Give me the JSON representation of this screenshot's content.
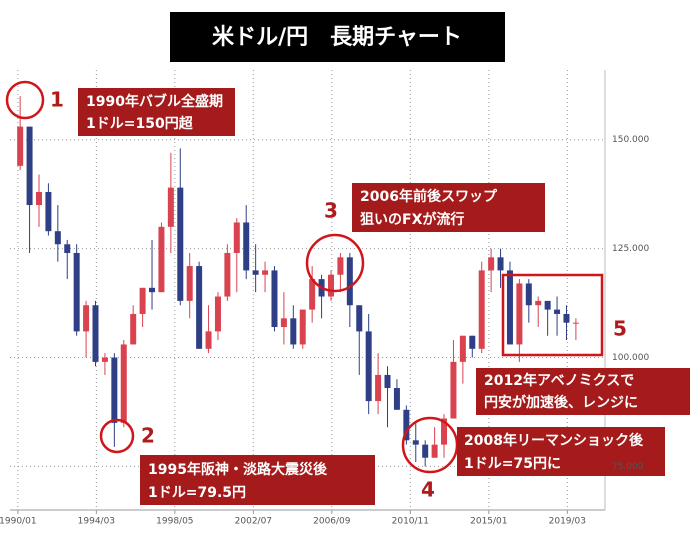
{
  "chart_data": {
    "type": "candlestick",
    "title": "米ドル/円　長期チャート",
    "x": [
      "1990/01",
      "1990/07",
      "1991/01",
      "1991/07",
      "1992/01",
      "1992/07",
      "1993/01",
      "1993/07",
      "1994/01",
      "1994/07",
      "1995/01",
      "1995/07",
      "1996/01",
      "1996/07",
      "1997/01",
      "1997/07",
      "1998/01",
      "1998/07",
      "1999/01",
      "1999/07",
      "2000/01",
      "2000/07",
      "2001/01",
      "2001/07",
      "2002/01",
      "2002/07",
      "2003/01",
      "2003/07",
      "2004/01",
      "2004/07",
      "2005/01",
      "2005/07",
      "2006/01",
      "2006/07",
      "2007/01",
      "2007/07",
      "2008/01",
      "2008/07",
      "2009/01",
      "2009/07",
      "2010/01",
      "2010/07",
      "2011/01",
      "2011/07",
      "2012/01",
      "2012/07",
      "2013/01",
      "2013/07",
      "2014/01",
      "2014/07",
      "2015/01",
      "2015/07",
      "2016/01",
      "2016/07",
      "2017/01",
      "2017/07",
      "2018/01",
      "2018/07",
      "2019/01",
      "2019/07"
    ],
    "open": [
      144,
      153,
      135,
      138,
      129,
      126,
      124,
      106,
      112,
      99,
      100,
      85,
      103,
      110,
      116,
      115,
      130,
      139,
      113,
      121,
      102,
      106,
      114,
      124,
      131,
      120,
      119,
      120,
      107,
      109,
      103,
      111,
      118,
      114,
      119,
      123,
      112,
      106,
      90,
      96,
      93,
      88,
      81,
      80,
      77,
      80,
      86,
      99,
      105,
      102,
      120,
      123,
      120,
      103,
      117,
      112,
      113,
      111,
      110,
      108
    ],
    "high": [
      160,
      153,
      142,
      140,
      135,
      127,
      126,
      113,
      113,
      101,
      101,
      104,
      112,
      116,
      127,
      131,
      147,
      148,
      124,
      122,
      112,
      115,
      126,
      132,
      135,
      126,
      122,
      121,
      115,
      112,
      111,
      121,
      119,
      120,
      124,
      124,
      112,
      110,
      101,
      98,
      95,
      89,
      85,
      81,
      84,
      87,
      104,
      105,
      105,
      122,
      125,
      125,
      122,
      118,
      118,
      114,
      113,
      114,
      112,
      109
    ],
    "low": [
      143,
      124,
      130,
      128,
      122,
      118,
      105,
      100,
      98,
      96,
      79.5,
      84,
      103,
      107,
      111,
      115,
      124,
      112,
      109,
      102,
      101,
      104,
      113,
      115,
      118,
      115,
      115,
      106,
      103,
      102,
      102,
      108,
      109,
      113,
      115,
      107,
      96,
      87,
      87,
      84,
      88,
      80,
      76,
      75,
      77,
      77,
      86,
      94,
      100,
      101,
      115,
      116,
      103,
      99,
      108,
      107,
      105,
      105,
      104,
      104
    ],
    "close": [
      153,
      135,
      138,
      129,
      126,
      124,
      106,
      112,
      99,
      100,
      85,
      103,
      110,
      116,
      115,
      130,
      139,
      113,
      121,
      102,
      106,
      114,
      124,
      131,
      120,
      119,
      120,
      107,
      109,
      103,
      111,
      118,
      114,
      119,
      123,
      112,
      106,
      90,
      96,
      93,
      88,
      81,
      80,
      77,
      80,
      86,
      99,
      105,
      102,
      120,
      123,
      120,
      103,
      117,
      112,
      113,
      111,
      110,
      108,
      108
    ],
    "up_color": "#d9434f",
    "down_color": "#2f3f86",
    "xlim": [
      "1989/08",
      "2021/03"
    ],
    "xticks": [
      "1990/01",
      "1994/03",
      "1998/05",
      "2002/07",
      "2006/09",
      "2010/11",
      "2015/01",
      "2019/03"
    ],
    "ylim": [
      65,
      166
    ],
    "yticks": [
      {
        "value": 75,
        "label": "75.000"
      },
      {
        "value": 100,
        "label": "100.000"
      },
      {
        "value": 125,
        "label": "125.000"
      },
      {
        "value": 150,
        "label": "150.000"
      }
    ],
    "grid": true,
    "annotations": [
      {
        "number": "1",
        "lines": [
          "1990年バブル全盛期",
          "1ドル=150円超"
        ]
      },
      {
        "number": "2",
        "lines": [
          "1995年阪神・淡路大震災後",
          "1ドル=79.5円"
        ]
      },
      {
        "number": "3",
        "lines": [
          "2006年前後スワップ",
          "狙いのFXが流行"
        ]
      },
      {
        "number": "4",
        "lines": [
          "2008年リーマンショック後",
          "1ドル=75円に"
        ]
      },
      {
        "number": "5",
        "lines": [
          "2012年アベノミクスで",
          "円安が加速後、レンジに"
        ]
      }
    ]
  }
}
